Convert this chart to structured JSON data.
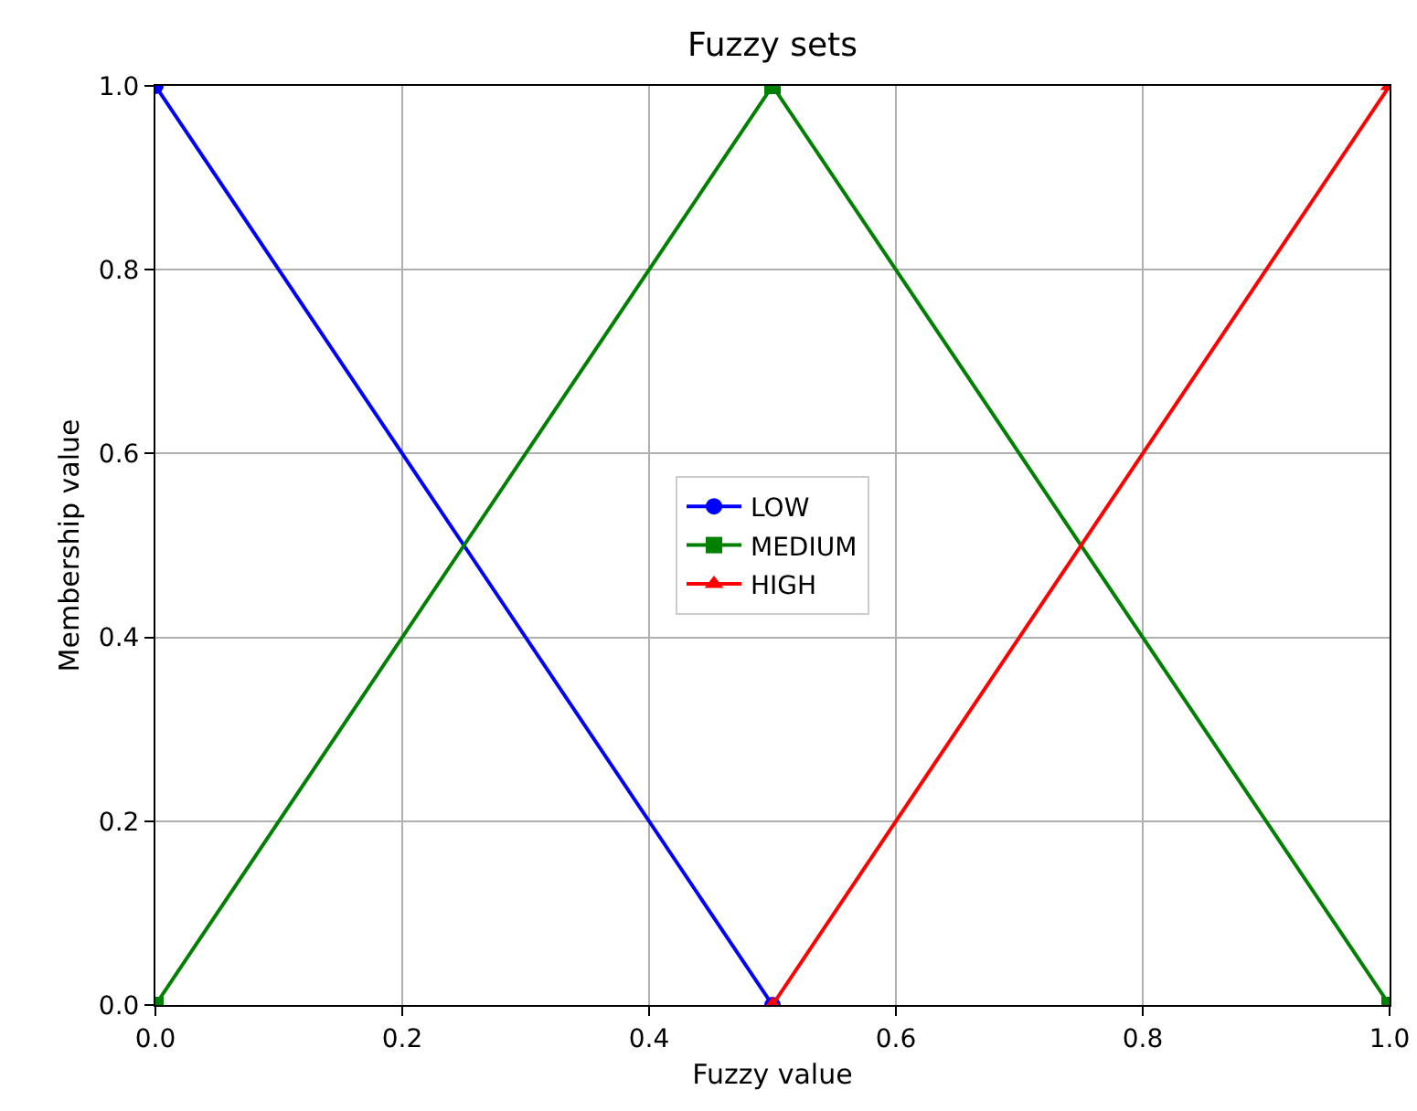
{
  "chart_data": {
    "type": "line",
    "title": "Fuzzy sets",
    "xlabel": "Fuzzy value",
    "ylabel": "Membership value",
    "series": [
      {
        "name": "LOW",
        "color": "#0000ff",
        "marker": "circle",
        "x": [
          0,
          0.5
        ],
        "values": [
          1,
          0
        ]
      },
      {
        "name": "MEDIUM",
        "color": "#008000",
        "marker": "square",
        "x": [
          0,
          0.5,
          1
        ],
        "values": [
          0,
          1,
          0
        ]
      },
      {
        "name": "HIGH",
        "color": "#ff0000",
        "marker": "triangle",
        "x": [
          0.5,
          1
        ],
        "values": [
          0,
          1
        ]
      }
    ],
    "xlim": [
      0,
      1
    ],
    "ylim": [
      0,
      1
    ],
    "xticks": [
      {
        "value": 0,
        "label": "0.0"
      },
      0.2,
      0.4,
      0.6,
      0.8,
      {
        "value": 1,
        "label": "1.0"
      }
    ],
    "yticks": [
      {
        "value": 0,
        "label": "0.0"
      },
      0.2,
      0.4,
      0.6,
      0.8,
      {
        "value": 1,
        "label": "1.0"
      }
    ],
    "grid": true,
    "legend": "center",
    "line_style": "solid"
  }
}
